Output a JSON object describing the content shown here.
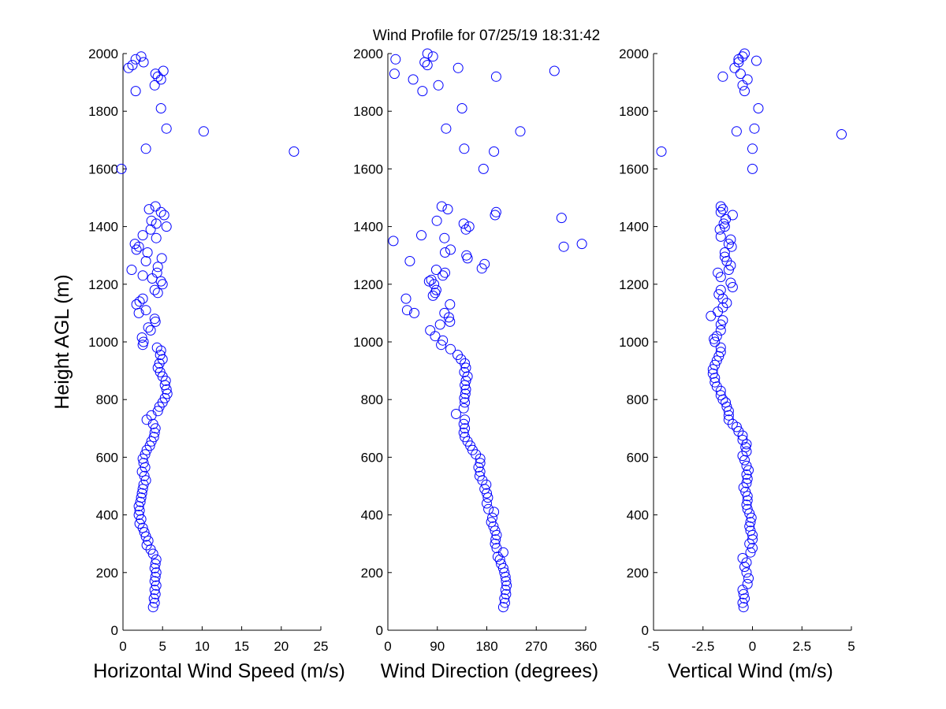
{
  "figure_title": "Wind Profile for  07/25/19 18:31:42",
  "colors": {
    "marker": "#0000ff",
    "axis": "#000000",
    "background": "#ffffff"
  },
  "chart_data": [
    {
      "type": "scatter",
      "title": "",
      "xlabel": "Horizontal Wind Speed (m/s)",
      "ylabel": "Height AGL (m)",
      "xlim": [
        0,
        25
      ],
      "ylim": [
        0,
        2000
      ],
      "xticks": [
        "0",
        "5",
        "10",
        "15",
        "20",
        "25"
      ],
      "yticks": [
        "0",
        "200",
        "400",
        "600",
        "800",
        "1000",
        "1200",
        "1400",
        "1600",
        "1800",
        "2000"
      ],
      "grid": false,
      "marker": "open circle",
      "points": [
        [
          3.8,
          80
        ],
        [
          4.0,
          95
        ],
        [
          3.9,
          110
        ],
        [
          4.1,
          125
        ],
        [
          4.0,
          140
        ],
        [
          4.2,
          155
        ],
        [
          4.0,
          170
        ],
        [
          4.1,
          185
        ],
        [
          4.2,
          200
        ],
        [
          4.0,
          215
        ],
        [
          4.1,
          230
        ],
        [
          4.2,
          245
        ],
        [
          3.8,
          265
        ],
        [
          3.5,
          280
        ],
        [
          3.0,
          295
        ],
        [
          3.2,
          310
        ],
        [
          2.9,
          325
        ],
        [
          2.7,
          340
        ],
        [
          2.5,
          355
        ],
        [
          2.1,
          370
        ],
        [
          2.3,
          385
        ],
        [
          2.0,
          400
        ],
        [
          2.1,
          415
        ],
        [
          2.0,
          430
        ],
        [
          2.2,
          445
        ],
        [
          2.3,
          460
        ],
        [
          2.4,
          475
        ],
        [
          2.5,
          490
        ],
        [
          2.6,
          505
        ],
        [
          2.9,
          520
        ],
        [
          2.7,
          535
        ],
        [
          2.4,
          550
        ],
        [
          2.8,
          565
        ],
        [
          2.6,
          580
        ],
        [
          2.5,
          595
        ],
        [
          2.8,
          610
        ],
        [
          3.0,
          625
        ],
        [
          3.4,
          640
        ],
        [
          3.6,
          655
        ],
        [
          3.9,
          670
        ],
        [
          4.0,
          685
        ],
        [
          4.1,
          700
        ],
        [
          3.8,
          715
        ],
        [
          3.0,
          730
        ],
        [
          3.6,
          745
        ],
        [
          4.4,
          760
        ],
        [
          4.6,
          775
        ],
        [
          5.0,
          790
        ],
        [
          5.3,
          805
        ],
        [
          5.6,
          820
        ],
        [
          5.5,
          835
        ],
        [
          5.3,
          850
        ],
        [
          5.4,
          865
        ],
        [
          5.0,
          880
        ],
        [
          4.7,
          895
        ],
        [
          4.4,
          910
        ],
        [
          4.6,
          925
        ],
        [
          5.0,
          940
        ],
        [
          4.7,
          955
        ],
        [
          4.8,
          970
        ],
        [
          4.3,
          980
        ],
        [
          2.5,
          990
        ],
        [
          2.6,
          1000
        ],
        [
          2.4,
          1015
        ],
        [
          3.5,
          1040
        ],
        [
          3.2,
          1050
        ],
        [
          4.1,
          1070
        ],
        [
          4.0,
          1080
        ],
        [
          2.0,
          1100
        ],
        [
          2.9,
          1110
        ],
        [
          1.7,
          1130
        ],
        [
          2.1,
          1140
        ],
        [
          2.5,
          1150
        ],
        [
          4.4,
          1170
        ],
        [
          4.0,
          1180
        ],
        [
          5.0,
          1200
        ],
        [
          4.8,
          1210
        ],
        [
          3.7,
          1220
        ],
        [
          2.5,
          1230
        ],
        [
          4.3,
          1240
        ],
        [
          1.1,
          1250
        ],
        [
          4.4,
          1260
        ],
        [
          2.9,
          1280
        ],
        [
          4.9,
          1290
        ],
        [
          3.1,
          1310
        ],
        [
          1.7,
          1320
        ],
        [
          2.0,
          1330
        ],
        [
          1.5,
          1340
        ],
        [
          4.2,
          1360
        ],
        [
          2.5,
          1370
        ],
        [
          3.5,
          1390
        ],
        [
          5.5,
          1400
        ],
        [
          4.2,
          1410
        ],
        [
          3.6,
          1420
        ],
        [
          5.2,
          1440
        ],
        [
          4.8,
          1450
        ],
        [
          3.3,
          1460
        ],
        [
          4.1,
          1470
        ],
        [
          -0.2,
          1600
        ],
        [
          2.9,
          1670
        ],
        [
          21.6,
          1660
        ],
        [
          10.2,
          1730
        ],
        [
          5.5,
          1740
        ],
        [
          4.8,
          1810
        ],
        [
          1.6,
          1870
        ],
        [
          4.0,
          1890
        ],
        [
          4.8,
          1910
        ],
        [
          4.4,
          1920
        ],
        [
          4.1,
          1930
        ],
        [
          5.1,
          1940
        ],
        [
          0.7,
          1950
        ],
        [
          1.2,
          1960
        ],
        [
          1.6,
          1980
        ],
        [
          2.3,
          1990
        ],
        [
          2.6,
          1970
        ]
      ]
    },
    {
      "type": "scatter",
      "title": "",
      "xlabel": "Wind Direction (degrees)",
      "ylabel": "",
      "xlim": [
        0,
        360
      ],
      "ylim": [
        0,
        2000
      ],
      "xticks": [
        "0",
        "90",
        "180",
        "270",
        "360"
      ],
      "yticks": [
        "0",
        "200",
        "400",
        "600",
        "800",
        "1000",
        "1200",
        "1400",
        "1600",
        "1800",
        "2000"
      ],
      "grid": false,
      "marker": "open circle",
      "points": [
        [
          210,
          80
        ],
        [
          213,
          95
        ],
        [
          212,
          110
        ],
        [
          215,
          125
        ],
        [
          214,
          140
        ],
        [
          216,
          155
        ],
        [
          215,
          170
        ],
        [
          214,
          185
        ],
        [
          212,
          200
        ],
        [
          210,
          215
        ],
        [
          206,
          230
        ],
        [
          204,
          245
        ],
        [
          200,
          255
        ],
        [
          210,
          270
        ],
        [
          198,
          285
        ],
        [
          195,
          300
        ],
        [
          196,
          315
        ],
        [
          198,
          330
        ],
        [
          195,
          345
        ],
        [
          192,
          360
        ],
        [
          188,
          375
        ],
        [
          190,
          390
        ],
        [
          193,
          410
        ],
        [
          183,
          420
        ],
        [
          180,
          440
        ],
        [
          182,
          460
        ],
        [
          180,
          475
        ],
        [
          176,
          490
        ],
        [
          179,
          505
        ],
        [
          172,
          520
        ],
        [
          167,
          535
        ],
        [
          168,
          550
        ],
        [
          165,
          565
        ],
        [
          168,
          580
        ],
        [
          168,
          595
        ],
        [
          160,
          610
        ],
        [
          154,
          625
        ],
        [
          150,
          640
        ],
        [
          145,
          655
        ],
        [
          140,
          670
        ],
        [
          138,
          685
        ],
        [
          140,
          700
        ],
        [
          138,
          715
        ],
        [
          140,
          730
        ],
        [
          124,
          750
        ],
        [
          138,
          770
        ],
        [
          140,
          790
        ],
        [
          139,
          805
        ],
        [
          141,
          820
        ],
        [
          142,
          835
        ],
        [
          140,
          850
        ],
        [
          142,
          865
        ],
        [
          145,
          880
        ],
        [
          139,
          895
        ],
        [
          142,
          910
        ],
        [
          140,
          925
        ],
        [
          133,
          940
        ],
        [
          127,
          955
        ],
        [
          114,
          975
        ],
        [
          97,
          990
        ],
        [
          100,
          1005
        ],
        [
          86,
          1020
        ],
        [
          77,
          1040
        ],
        [
          95,
          1060
        ],
        [
          113,
          1070
        ],
        [
          111,
          1085
        ],
        [
          103,
          1100
        ],
        [
          35,
          1110
        ],
        [
          48,
          1100
        ],
        [
          113,
          1130
        ],
        [
          33,
          1150
        ],
        [
          82,
          1160
        ],
        [
          86,
          1170
        ],
        [
          88,
          1180
        ],
        [
          84,
          1200
        ],
        [
          75,
          1210
        ],
        [
          79,
          1215
        ],
        [
          100,
          1230
        ],
        [
          88,
          1250
        ],
        [
          104,
          1240
        ],
        [
          171,
          1255
        ],
        [
          176,
          1270
        ],
        [
          40,
          1280
        ],
        [
          145,
          1290
        ],
        [
          143,
          1300
        ],
        [
          104,
          1310
        ],
        [
          114,
          1320
        ],
        [
          320,
          1330
        ],
        [
          353,
          1340
        ],
        [
          10,
          1350
        ],
        [
          103,
          1360
        ],
        [
          61,
          1370
        ],
        [
          142,
          1390
        ],
        [
          148,
          1400
        ],
        [
          138,
          1410
        ],
        [
          89,
          1420
        ],
        [
          316,
          1430
        ],
        [
          195,
          1440
        ],
        [
          197,
          1450
        ],
        [
          109,
          1460
        ],
        [
          98,
          1470
        ],
        [
          174,
          1600
        ],
        [
          193,
          1660
        ],
        [
          139,
          1670
        ],
        [
          241,
          1730
        ],
        [
          106,
          1740
        ],
        [
          135,
          1810
        ],
        [
          63,
          1870
        ],
        [
          92,
          1890
        ],
        [
          46,
          1910
        ],
        [
          197,
          1920
        ],
        [
          12,
          1930
        ],
        [
          303,
          1940
        ],
        [
          128,
          1950
        ],
        [
          72,
          1960
        ],
        [
          67,
          1970
        ],
        [
          14,
          1980
        ],
        [
          82,
          1990
        ],
        [
          72,
          2000
        ]
      ]
    },
    {
      "type": "scatter",
      "title": "",
      "xlabel": "Vertical Wind (m/s)",
      "ylabel": "",
      "xlim": [
        -5,
        5
      ],
      "ylim": [
        0,
        2000
      ],
      "xticks": [
        "-5",
        "-2.5",
        "0",
        "2.5",
        "5"
      ],
      "yticks": [
        "0",
        "200",
        "400",
        "600",
        "800",
        "1000",
        "1200",
        "1400",
        "1600",
        "1800",
        "2000"
      ],
      "grid": false,
      "marker": "open circle",
      "points": [
        [
          -0.45,
          80
        ],
        [
          -0.5,
          95
        ],
        [
          -0.4,
          110
        ],
        [
          -0.45,
          125
        ],
        [
          -0.5,
          140
        ],
        [
          -0.25,
          160
        ],
        [
          -0.2,
          180
        ],
        [
          -0.3,
          200
        ],
        [
          -0.4,
          220
        ],
        [
          -0.3,
          235
        ],
        [
          -0.5,
          250
        ],
        [
          -0.1,
          270
        ],
        [
          0.0,
          285
        ],
        [
          -0.15,
          300
        ],
        [
          0.0,
          315
        ],
        [
          0.0,
          330
        ],
        [
          -0.1,
          345
        ],
        [
          -0.15,
          360
        ],
        [
          -0.1,
          375
        ],
        [
          -0.05,
          390
        ],
        [
          -0.15,
          405
        ],
        [
          -0.25,
          420
        ],
        [
          -0.3,
          435
        ],
        [
          -0.25,
          450
        ],
        [
          -0.25,
          465
        ],
        [
          -0.35,
          480
        ],
        [
          -0.45,
          495
        ],
        [
          -0.3,
          510
        ],
        [
          -0.25,
          525
        ],
        [
          -0.3,
          540
        ],
        [
          -0.2,
          555
        ],
        [
          -0.3,
          570
        ],
        [
          -0.4,
          590
        ],
        [
          -0.5,
          605
        ],
        [
          -0.3,
          620
        ],
        [
          -0.35,
          635
        ],
        [
          -0.3,
          645
        ],
        [
          -0.5,
          660
        ],
        [
          -0.5,
          675
        ],
        [
          -0.7,
          690
        ],
        [
          -0.8,
          705
        ],
        [
          -1.0,
          715
        ],
        [
          -1.2,
          730
        ],
        [
          -1.2,
          745
        ],
        [
          -1.2,
          760
        ],
        [
          -1.3,
          775
        ],
        [
          -1.35,
          790
        ],
        [
          -1.5,
          800
        ],
        [
          -1.6,
          815
        ],
        [
          -1.6,
          830
        ],
        [
          -1.8,
          845
        ],
        [
          -1.9,
          860
        ],
        [
          -1.9,
          875
        ],
        [
          -2.0,
          890
        ],
        [
          -2.0,
          905
        ],
        [
          -1.9,
          920
        ],
        [
          -1.8,
          935
        ],
        [
          -1.7,
          950
        ],
        [
          -1.6,
          965
        ],
        [
          -1.6,
          980
        ],
        [
          -1.9,
          1000
        ],
        [
          -1.95,
          1010
        ],
        [
          -1.8,
          1020
        ],
        [
          -1.6,
          1040
        ],
        [
          -1.6,
          1060
        ],
        [
          -1.5,
          1075
        ],
        [
          -2.1,
          1090
        ],
        [
          -1.75,
          1105
        ],
        [
          -1.5,
          1120
        ],
        [
          -1.3,
          1135
        ],
        [
          -1.5,
          1150
        ],
        [
          -1.7,
          1165
        ],
        [
          -1.6,
          1180
        ],
        [
          -1.0,
          1190
        ],
        [
          -1.1,
          1205
        ],
        [
          -1.6,
          1225
        ],
        [
          -1.75,
          1240
        ],
        [
          -1.2,
          1250
        ],
        [
          -1.1,
          1265
        ],
        [
          -1.3,
          1280
        ],
        [
          -1.4,
          1295
        ],
        [
          -1.4,
          1310
        ],
        [
          -1.05,
          1330
        ],
        [
          -1.2,
          1340
        ],
        [
          -1.1,
          1355
        ],
        [
          -1.6,
          1365
        ],
        [
          -1.65,
          1390
        ],
        [
          -1.4,
          1400
        ],
        [
          -1.45,
          1410
        ],
        [
          -1.35,
          1425
        ],
        [
          -1.0,
          1440
        ],
        [
          -1.6,
          1450
        ],
        [
          -1.5,
          1460
        ],
        [
          -1.6,
          1470
        ],
        [
          0.0,
          1600
        ],
        [
          -4.6,
          1660
        ],
        [
          0.0,
          1670
        ],
        [
          4.5,
          1720
        ],
        [
          0.1,
          1740
        ],
        [
          -0.8,
          1730
        ],
        [
          0.3,
          1810
        ],
        [
          -0.4,
          1870
        ],
        [
          -0.5,
          1890
        ],
        [
          -0.25,
          1910
        ],
        [
          -1.5,
          1920
        ],
        [
          -0.6,
          1930
        ],
        [
          -0.9,
          1950
        ],
        [
          -0.7,
          1970
        ],
        [
          0.2,
          1975
        ],
        [
          -0.7,
          1980
        ],
        [
          -0.5,
          1990
        ],
        [
          -0.4,
          2000
        ]
      ]
    }
  ]
}
